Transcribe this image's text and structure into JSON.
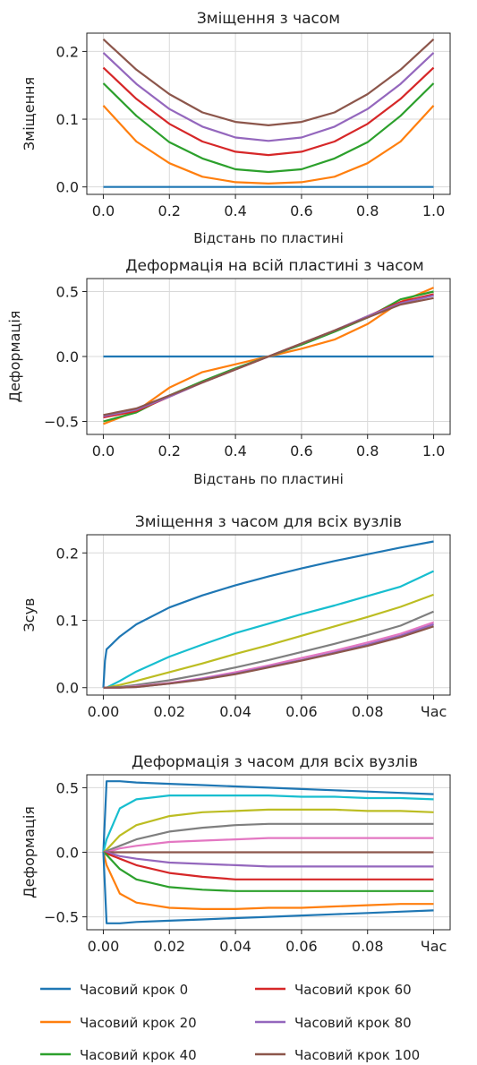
{
  "chart_data": [
    {
      "type": "line",
      "title": "Зміщення з часом",
      "xlabel": "Відстань по пластині",
      "ylabel": "Зміщення",
      "xlim": [
        -0.05,
        1.05
      ],
      "ylim": [
        -0.011,
        0.227
      ],
      "x_ticks": [
        0.0,
        0.2,
        0.4,
        0.6,
        0.8,
        1.0
      ],
      "x_tick_labels": [
        "0.0",
        "0.2",
        "0.4",
        "0.6",
        "0.8",
        "1.0"
      ],
      "y_ticks": [
        0.0,
        0.1,
        0.2
      ],
      "y_tick_labels": [
        "0.0",
        "0.1",
        "0.2"
      ],
      "grid": true,
      "x": [
        0.0,
        0.1,
        0.2,
        0.3,
        0.4,
        0.5,
        0.6,
        0.7,
        0.8,
        0.9,
        1.0
      ],
      "series": [
        {
          "color": "#1f77b4",
          "values": [
            0.0,
            0.0,
            0.0,
            0.0,
            0.0,
            0.0,
            0.0,
            0.0,
            0.0,
            0.0,
            0.0
          ]
        },
        {
          "color": "#ff7f0e",
          "values": [
            0.12,
            0.067,
            0.035,
            0.015,
            0.007,
            0.005,
            0.007,
            0.015,
            0.035,
            0.067,
            0.12
          ]
        },
        {
          "color": "#2ca02c",
          "values": [
            0.153,
            0.105,
            0.066,
            0.042,
            0.026,
            0.022,
            0.026,
            0.042,
            0.066,
            0.105,
            0.153
          ]
        },
        {
          "color": "#d62728",
          "values": [
            0.176,
            0.13,
            0.093,
            0.067,
            0.052,
            0.047,
            0.052,
            0.067,
            0.093,
            0.13,
            0.176
          ]
        },
        {
          "color": "#9467bd",
          "values": [
            0.198,
            0.152,
            0.115,
            0.089,
            0.073,
            0.068,
            0.073,
            0.089,
            0.115,
            0.152,
            0.198
          ]
        },
        {
          "color": "#8c564b",
          "values": [
            0.218,
            0.173,
            0.137,
            0.11,
            0.096,
            0.091,
            0.096,
            0.11,
            0.137,
            0.173,
            0.218
          ]
        }
      ]
    },
    {
      "type": "line",
      "title": "Деформація на всій пластині з часом",
      "xlabel": "Відстань по пластині",
      "ylabel": "Деформація",
      "xlim": [
        -0.05,
        1.05
      ],
      "ylim": [
        -0.6,
        0.6
      ],
      "x_ticks": [
        0.0,
        0.2,
        0.4,
        0.6,
        0.8,
        1.0
      ],
      "x_tick_labels": [
        "0.0",
        "0.2",
        "0.4",
        "0.6",
        "0.8",
        "1.0"
      ],
      "y_ticks": [
        -0.5,
        0.0,
        0.5
      ],
      "y_tick_labels": [
        "−0.5",
        "0.0",
        "0.5"
      ],
      "grid": true,
      "x": [
        0.0,
        0.1,
        0.2,
        0.3,
        0.4,
        0.5,
        0.6,
        0.7,
        0.8,
        0.9,
        1.0
      ],
      "series": [
        {
          "color": "#1f77b4",
          "values": [
            0.0,
            0.0,
            0.0,
            0.0,
            0.0,
            0.0,
            0.0,
            0.0,
            0.0,
            0.0,
            0.0
          ]
        },
        {
          "color": "#ff7f0e",
          "values": [
            -0.52,
            -0.42,
            -0.24,
            -0.12,
            -0.06,
            0.0,
            0.06,
            0.13,
            0.25,
            0.42,
            0.53
          ]
        },
        {
          "color": "#2ca02c",
          "values": [
            -0.5,
            -0.43,
            -0.3,
            -0.19,
            -0.09,
            0.0,
            0.09,
            0.19,
            0.3,
            0.44,
            0.5
          ]
        },
        {
          "color": "#d62728",
          "values": [
            -0.47,
            -0.42,
            -0.31,
            -0.2,
            -0.1,
            0.0,
            0.1,
            0.2,
            0.31,
            0.42,
            0.48
          ]
        },
        {
          "color": "#9467bd",
          "values": [
            -0.46,
            -0.41,
            -0.31,
            -0.2,
            -0.1,
            0.0,
            0.1,
            0.2,
            0.31,
            0.41,
            0.47
          ]
        },
        {
          "color": "#8c564b",
          "values": [
            -0.45,
            -0.4,
            -0.3,
            -0.2,
            -0.1,
            0.0,
            0.1,
            0.2,
            0.3,
            0.4,
            0.45
          ]
        }
      ]
    },
    {
      "type": "line",
      "title": "Зміщення з часом для всіх вузлів",
      "xlabel": "",
      "ylabel": "Зсув",
      "xlim": [
        -0.005,
        0.105
      ],
      "ylim": [
        -0.011,
        0.227
      ],
      "x_ticks": [
        0.0,
        0.02,
        0.04,
        0.06,
        0.08,
        0.1
      ],
      "x_tick_labels": [
        "0.00",
        "0.02",
        "0.04",
        "0.06",
        "0.08",
        "Час"
      ],
      "y_ticks": [
        0.0,
        0.1,
        0.2
      ],
      "y_tick_labels": [
        "0.0",
        "0.1",
        "0.2"
      ],
      "grid": true,
      "x": [
        0.0,
        0.0005,
        0.001,
        0.005,
        0.01,
        0.02,
        0.03,
        0.04,
        0.05,
        0.06,
        0.07,
        0.08,
        0.09,
        0.1
      ],
      "series": [
        {
          "color": "#1f77b4",
          "values": [
            0.0,
            0.04,
            0.057,
            0.076,
            0.094,
            0.119,
            0.137,
            0.152,
            0.165,
            0.177,
            0.188,
            0.198,
            0.208,
            0.217
          ]
        },
        {
          "color": "#17becf",
          "values": [
            0.0,
            0.0,
            0.0,
            0.01,
            0.024,
            0.046,
            0.064,
            0.081,
            0.095,
            0.109,
            0.122,
            0.136,
            0.15,
            0.173
          ]
        },
        {
          "color": "#bcbd22",
          "values": [
            0.0,
            0.0,
            0.0,
            0.004,
            0.01,
            0.023,
            0.036,
            0.05,
            0.063,
            0.077,
            0.091,
            0.105,
            0.12,
            0.138
          ]
        },
        {
          "color": "#7f7f7f",
          "values": [
            0.0,
            0.0,
            0.0,
            0.001,
            0.004,
            0.011,
            0.02,
            0.03,
            0.041,
            0.053,
            0.065,
            0.078,
            0.092,
            0.113
          ]
        },
        {
          "color": "#e377c2",
          "values": [
            0.0,
            0.0,
            0.0,
            0.0,
            0.002,
            0.007,
            0.014,
            0.023,
            0.033,
            0.044,
            0.055,
            0.067,
            0.08,
            0.097
          ]
        },
        {
          "color": "#9467bd",
          "values": [
            0.0,
            0.0,
            0.0,
            0.0,
            0.001,
            0.006,
            0.013,
            0.021,
            0.031,
            0.041,
            0.052,
            0.064,
            0.077,
            0.094
          ]
        },
        {
          "color": "#8c564b",
          "values": [
            0.0,
            0.0,
            0.0,
            0.0,
            0.001,
            0.006,
            0.012,
            0.02,
            0.03,
            0.04,
            0.051,
            0.062,
            0.075,
            0.091
          ]
        }
      ]
    },
    {
      "type": "line",
      "title": "Деформація з часом для всіх вузлів",
      "xlabel": "",
      "ylabel": "Деформація",
      "xlim": [
        -0.005,
        0.105
      ],
      "ylim": [
        -0.6,
        0.6
      ],
      "x_ticks": [
        0.0,
        0.02,
        0.04,
        0.06,
        0.08,
        0.1
      ],
      "x_tick_labels": [
        "0.00",
        "0.02",
        "0.04",
        "0.06",
        "0.08",
        "Час"
      ],
      "y_ticks": [
        -0.5,
        0.0,
        0.5
      ],
      "y_tick_labels": [
        "−0.5",
        "0.0",
        "0.5"
      ],
      "grid": true,
      "x": [
        0.0,
        0.001,
        0.005,
        0.01,
        0.02,
        0.03,
        0.04,
        0.05,
        0.06,
        0.07,
        0.08,
        0.09,
        0.1
      ],
      "series": [
        {
          "color": "#1f77b4",
          "values": [
            0.0,
            0.55,
            0.55,
            0.54,
            0.53,
            0.52,
            0.51,
            0.5,
            0.49,
            0.48,
            0.47,
            0.46,
            0.45
          ]
        },
        {
          "color": "#17becf",
          "values": [
            0.0,
            0.1,
            0.34,
            0.41,
            0.44,
            0.44,
            0.44,
            0.44,
            0.43,
            0.43,
            0.42,
            0.42,
            0.41
          ]
        },
        {
          "color": "#bcbd22",
          "values": [
            0.0,
            0.02,
            0.13,
            0.21,
            0.28,
            0.31,
            0.32,
            0.33,
            0.33,
            0.33,
            0.32,
            0.32,
            0.31
          ]
        },
        {
          "color": "#7f7f7f",
          "values": [
            0.0,
            0.01,
            0.05,
            0.1,
            0.16,
            0.19,
            0.21,
            0.22,
            0.22,
            0.22,
            0.22,
            0.22,
            0.22
          ]
        },
        {
          "color": "#e377c2",
          "values": [
            0.0,
            0.0,
            0.03,
            0.05,
            0.08,
            0.09,
            0.1,
            0.11,
            0.11,
            0.11,
            0.11,
            0.11,
            0.11
          ]
        },
        {
          "color": "#8c564b",
          "values": [
            0.0,
            0.0,
            0.0,
            0.0,
            0.0,
            0.0,
            0.0,
            0.0,
            0.0,
            0.0,
            0.0,
            0.0,
            0.0
          ]
        },
        {
          "color": "#9467bd",
          "values": [
            0.0,
            0.0,
            -0.03,
            -0.05,
            -0.08,
            -0.09,
            -0.1,
            -0.11,
            -0.11,
            -0.11,
            -0.11,
            -0.11,
            -0.11
          ]
        },
        {
          "color": "#d62728",
          "values": [
            0.0,
            -0.01,
            -0.05,
            -0.1,
            -0.16,
            -0.19,
            -0.21,
            -0.21,
            -0.21,
            -0.21,
            -0.21,
            -0.21,
            -0.21
          ]
        },
        {
          "color": "#2ca02c",
          "values": [
            0.0,
            -0.02,
            -0.13,
            -0.21,
            -0.27,
            -0.29,
            -0.3,
            -0.3,
            -0.3,
            -0.3,
            -0.3,
            -0.3,
            -0.3
          ]
        },
        {
          "color": "#ff7f0e",
          "values": [
            0.0,
            -0.1,
            -0.32,
            -0.39,
            -0.43,
            -0.44,
            -0.44,
            -0.43,
            -0.43,
            -0.42,
            -0.41,
            -0.4,
            -0.4
          ]
        },
        {
          "color": "#1f77b4",
          "values": [
            0.0,
            -0.55,
            -0.55,
            -0.54,
            -0.53,
            -0.52,
            -0.51,
            -0.5,
            -0.49,
            -0.48,
            -0.47,
            -0.46,
            -0.45
          ]
        }
      ]
    }
  ],
  "legend": {
    "items": [
      {
        "label": "Часовий крок 0",
        "color": "#1f77b4"
      },
      {
        "label": "Часовий крок 20",
        "color": "#ff7f0e"
      },
      {
        "label": "Часовий крок 40",
        "color": "#2ca02c"
      },
      {
        "label": "Часовий крок 60",
        "color": "#d62728"
      },
      {
        "label": "Часовий крок 80",
        "color": "#9467bd"
      },
      {
        "label": "Часовий крок 100",
        "color": "#8c564b"
      }
    ]
  }
}
